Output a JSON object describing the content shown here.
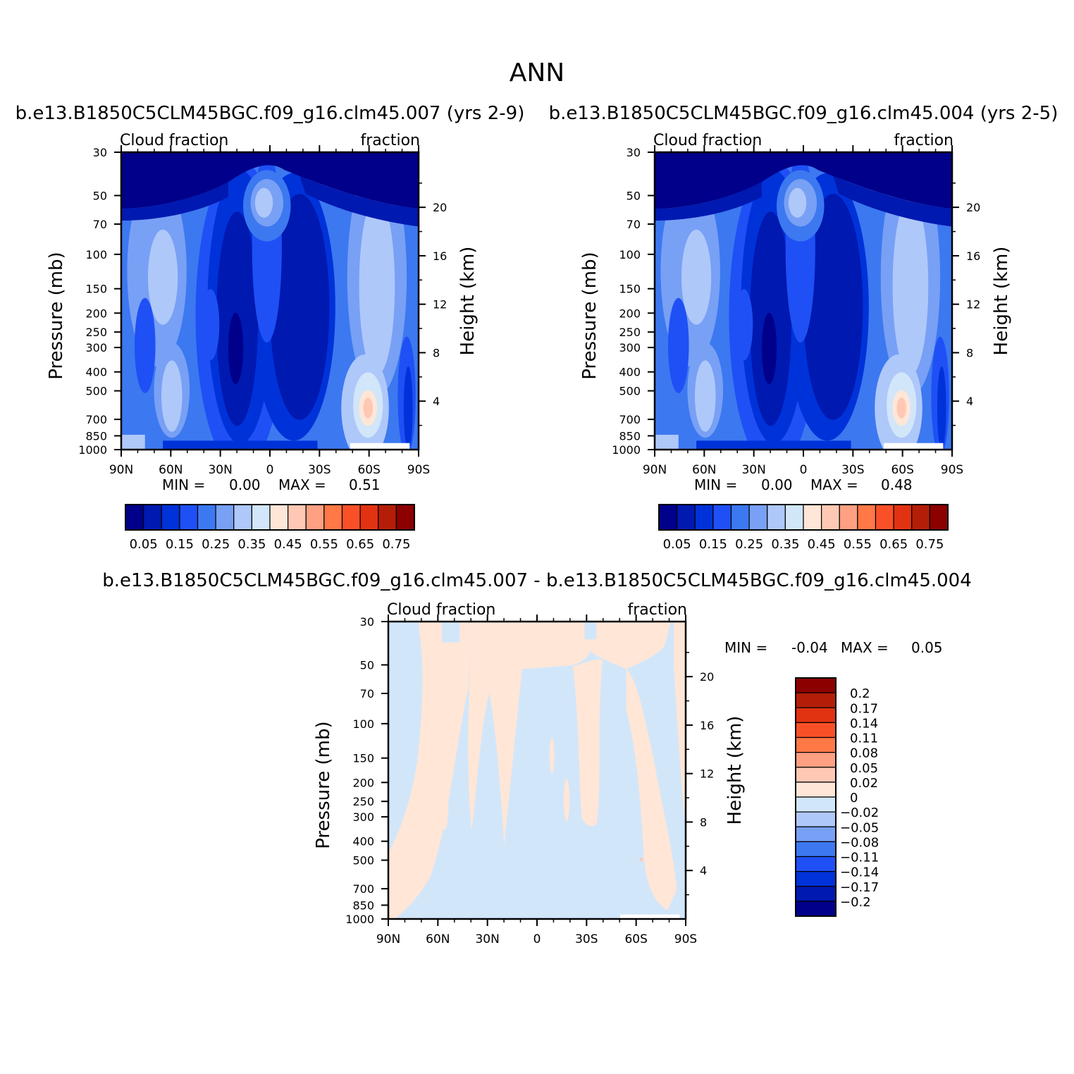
{
  "figure": {
    "title": "ANN"
  },
  "colors": {
    "levels": [
      "#00008a",
      "#0019b0",
      "#0032d9",
      "#1e50f5",
      "#3c78f0",
      "#78a0f5",
      "#afc8fa",
      "#d2e6fa",
      "#ffe6d7",
      "#ffc8b4",
      "#ffa082",
      "#ff7846",
      "#fa5028",
      "#e13212",
      "#b41e08",
      "#8c0000"
    ]
  },
  "chart_data": [
    {
      "type": "heatmap",
      "id": "model1",
      "title": "b.e13.B1850C5CLM45BGC.f09_g16.clm45.007 (yrs 2-9)",
      "left_label": "Cloud fraction",
      "right_label": "fraction",
      "ylabel": "Pressure (mb)",
      "ylabel_right": "Height (km)",
      "xticks": [
        "90N",
        "60N",
        "30N",
        "0",
        "30S",
        "60S",
        "90S"
      ],
      "yticks": [
        30,
        50,
        70,
        100,
        150,
        200,
        250,
        300,
        400,
        500,
        700,
        850,
        1000
      ],
      "yticks_right": [
        20,
        16,
        12,
        8,
        4
      ],
      "ylim": [
        1000,
        30
      ],
      "min_label": "MIN =",
      "min_value": "0.00",
      "max_label": "MAX =",
      "max_value": "0.51",
      "colorbar": {
        "orientation": "horizontal",
        "labels": [
          "0.05",
          "0.15",
          "0.25",
          "0.35",
          "0.45",
          "0.55",
          "0.65",
          "0.75"
        ]
      }
    },
    {
      "type": "heatmap",
      "id": "model2",
      "title": "b.e13.B1850C5CLM45BGC.f09_g16.clm45.004 (yrs 2-5)",
      "left_label": "Cloud fraction",
      "right_label": "fraction",
      "ylabel": "Pressure (mb)",
      "ylabel_right": "Height (km)",
      "xticks": [
        "90N",
        "60N",
        "30N",
        "0",
        "30S",
        "60S",
        "90S"
      ],
      "yticks": [
        30,
        50,
        70,
        100,
        150,
        200,
        250,
        300,
        400,
        500,
        700,
        850,
        1000
      ],
      "yticks_right": [
        20,
        16,
        12,
        8,
        4
      ],
      "ylim": [
        1000,
        30
      ],
      "min_label": "MIN =",
      "min_value": "0.00",
      "max_label": "MAX =",
      "max_value": "0.48",
      "colorbar": {
        "orientation": "horizontal",
        "labels": [
          "0.05",
          "0.15",
          "0.25",
          "0.35",
          "0.45",
          "0.55",
          "0.65",
          "0.75"
        ]
      }
    },
    {
      "type": "heatmap",
      "id": "diff",
      "title": "b.e13.B1850C5CLM45BGC.f09_g16.clm45.007 - b.e13.B1850C5CLM45BGC.f09_g16.clm45.004",
      "left_label": "Cloud fraction",
      "right_label": "fraction",
      "ylabel": "Pressure (mb)",
      "ylabel_right": "Height (km)",
      "xticks": [
        "90N",
        "60N",
        "30N",
        "0",
        "30S",
        "60S",
        "90S"
      ],
      "yticks": [
        30,
        50,
        70,
        100,
        150,
        200,
        250,
        300,
        400,
        500,
        700,
        850,
        1000
      ],
      "yticks_right": [
        20,
        16,
        12,
        8,
        4
      ],
      "ylim": [
        1000,
        30
      ],
      "min_label": "MIN =",
      "min_value": "-0.04",
      "max_label": "MAX =",
      "max_value": "0.05",
      "colorbar": {
        "orientation": "vertical",
        "labels": [
          "0.2",
          "0.17",
          "0.14",
          "0.11",
          "0.08",
          "0.05",
          "0.02",
          "0",
          "-0.02",
          "-0.05",
          "-0.08",
          "-0.11",
          "-0.14",
          "-0.17",
          "-0.2"
        ],
        "colors": [
          "#8c0000",
          "#b41e08",
          "#e13212",
          "#fa5028",
          "#ff7846",
          "#ffa082",
          "#ffc8b4",
          "#ffe6d7",
          "#d2e6fa",
          "#afc8fa",
          "#78a0f5",
          "#3c78f0",
          "#1e50f5",
          "#0032d9",
          "#0019b0",
          "#00008a"
        ]
      }
    }
  ]
}
